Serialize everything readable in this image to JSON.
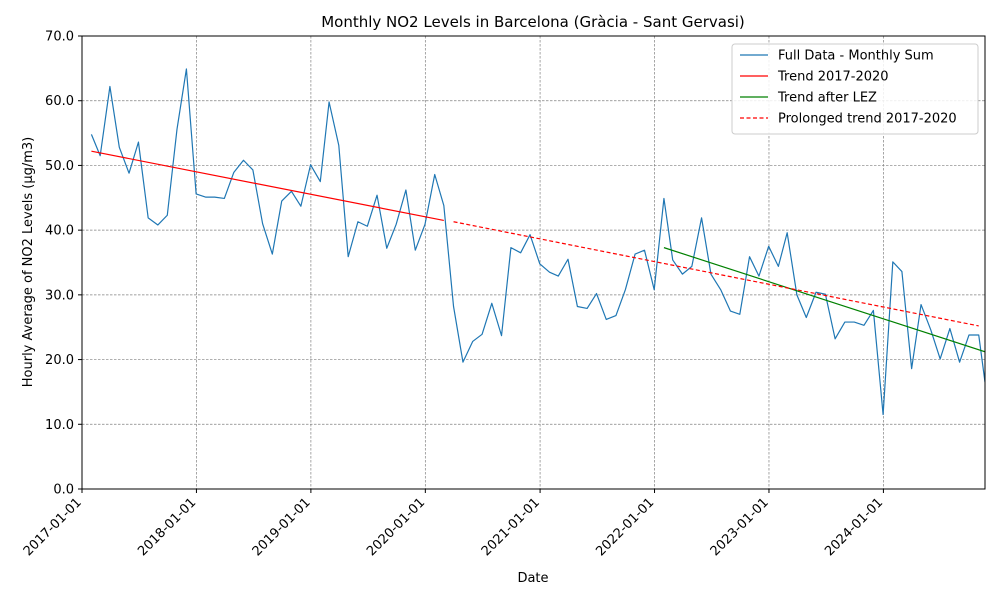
{
  "chart_data": {
    "type": "line",
    "title": "Monthly NO2 Levels in Barcelona (Gràcia - Sant Gervasi)",
    "xlabel": "Date",
    "ylabel": "Hourly Average of NO2 Levels (µg/m3)",
    "xlim": [
      "2017-01-01",
      "2024-11-20"
    ],
    "ylim": [
      0,
      70
    ],
    "x_ticks": [
      "2017-01-01",
      "2018-01-01",
      "2019-01-01",
      "2020-01-01",
      "2021-01-01",
      "2022-01-01",
      "2023-01-01",
      "2024-01-01"
    ],
    "y_ticks": [
      "0.0",
      "10.0",
      "20.0",
      "30.0",
      "40.0",
      "50.0",
      "60.0",
      "70.0"
    ],
    "grid": true,
    "legend_position": "top-right",
    "colors": {
      "full": "#1f77b4",
      "trend_2017_2020": "#ff0000",
      "trend_after_lez": "#008000",
      "prolonged": "#ff0000"
    },
    "series": [
      {
        "name": "Full Data - Monthly Sum",
        "style": "solid",
        "color": "#1f77b4",
        "points": [
          [
            "2017-01-31",
            54.8
          ],
          [
            "2017-02-28",
            51.5
          ],
          [
            "2017-03-31",
            62.2
          ],
          [
            "2017-04-30",
            52.8
          ],
          [
            "2017-05-31",
            48.8
          ],
          [
            "2017-06-30",
            53.6
          ],
          [
            "2017-07-31",
            41.9
          ],
          [
            "2017-08-31",
            40.8
          ],
          [
            "2017-09-30",
            42.3
          ],
          [
            "2017-10-31",
            55.6
          ],
          [
            "2017-11-30",
            64.9
          ],
          [
            "2017-12-31",
            45.6
          ],
          [
            "2018-01-31",
            45.1
          ],
          [
            "2018-02-28",
            45.1
          ],
          [
            "2018-03-31",
            44.9
          ],
          [
            "2018-04-30",
            48.9
          ],
          [
            "2018-05-31",
            50.8
          ],
          [
            "2018-06-30",
            49.3
          ],
          [
            "2018-07-31",
            41.0
          ],
          [
            "2018-08-31",
            36.3
          ],
          [
            "2018-09-30",
            44.5
          ],
          [
            "2018-10-31",
            46.0
          ],
          [
            "2018-11-30",
            43.7
          ],
          [
            "2018-12-31",
            50.1
          ],
          [
            "2019-01-31",
            47.5
          ],
          [
            "2019-02-28",
            59.8
          ],
          [
            "2019-03-31",
            53.1
          ],
          [
            "2019-04-30",
            35.9
          ],
          [
            "2019-05-31",
            41.3
          ],
          [
            "2019-06-30",
            40.6
          ],
          [
            "2019-07-31",
            45.4
          ],
          [
            "2019-08-31",
            37.2
          ],
          [
            "2019-09-30",
            40.9
          ],
          [
            "2019-10-31",
            46.2
          ],
          [
            "2019-11-30",
            36.9
          ],
          [
            "2019-12-31",
            40.9
          ],
          [
            "2020-01-31",
            48.6
          ],
          [
            "2020-02-29",
            43.8
          ],
          [
            "2020-03-31",
            28.2
          ],
          [
            "2020-04-30",
            19.6
          ],
          [
            "2020-05-31",
            22.8
          ],
          [
            "2020-06-30",
            23.9
          ],
          [
            "2020-07-31",
            28.7
          ],
          [
            "2020-08-31",
            23.7
          ],
          [
            "2020-09-30",
            37.3
          ],
          [
            "2020-10-31",
            36.5
          ],
          [
            "2020-11-30",
            39.3
          ],
          [
            "2020-12-31",
            34.8
          ],
          [
            "2021-01-31",
            33.5
          ],
          [
            "2021-02-28",
            32.9
          ],
          [
            "2021-03-31",
            35.5
          ],
          [
            "2021-04-30",
            28.2
          ],
          [
            "2021-05-31",
            27.9
          ],
          [
            "2021-06-30",
            30.2
          ],
          [
            "2021-07-31",
            26.2
          ],
          [
            "2021-08-31",
            26.8
          ],
          [
            "2021-09-30",
            30.8
          ],
          [
            "2021-10-31",
            36.3
          ],
          [
            "2021-11-30",
            36.9
          ],
          [
            "2021-12-31",
            30.8
          ],
          [
            "2022-01-31",
            44.9
          ],
          [
            "2022-02-28",
            35.4
          ],
          [
            "2022-03-31",
            33.2
          ],
          [
            "2022-04-30",
            34.4
          ],
          [
            "2022-05-31",
            41.9
          ],
          [
            "2022-06-30",
            33.2
          ],
          [
            "2022-07-31",
            30.8
          ],
          [
            "2022-08-31",
            27.5
          ],
          [
            "2022-09-30",
            27.0
          ],
          [
            "2022-10-31",
            35.9
          ],
          [
            "2022-11-30",
            32.9
          ],
          [
            "2022-12-31",
            37.5
          ],
          [
            "2023-01-31",
            34.4
          ],
          [
            "2023-02-28",
            39.6
          ],
          [
            "2023-03-31",
            30.0
          ],
          [
            "2023-04-30",
            26.5
          ],
          [
            "2023-05-31",
            30.4
          ],
          [
            "2023-06-30",
            30.1
          ],
          [
            "2023-07-31",
            23.2
          ],
          [
            "2023-08-31",
            25.8
          ],
          [
            "2023-09-30",
            25.8
          ],
          [
            "2023-10-31",
            25.3
          ],
          [
            "2023-11-30",
            27.6
          ],
          [
            "2023-12-31",
            11.5
          ],
          [
            "2024-01-31",
            35.1
          ],
          [
            "2024-02-29",
            33.6
          ],
          [
            "2024-03-31",
            18.6
          ],
          [
            "2024-04-30",
            28.5
          ],
          [
            "2024-05-31",
            24.6
          ],
          [
            "2024-06-30",
            20.1
          ],
          [
            "2024-07-31",
            24.8
          ],
          [
            "2024-08-31",
            19.6
          ],
          [
            "2024-09-30",
            23.8
          ],
          [
            "2024-10-31",
            23.8
          ],
          [
            "2024-11-20",
            16.5
          ]
        ]
      },
      {
        "name": "Trend 2017-2020",
        "style": "solid",
        "color": "#ff0000",
        "points": [
          [
            "2017-01-31",
            52.2
          ],
          [
            "2020-02-29",
            41.5
          ]
        ]
      },
      {
        "name": "Trend after LEZ",
        "style": "solid",
        "color": "#008000",
        "points": [
          [
            "2022-01-31",
            37.3
          ],
          [
            "2024-11-20",
            21.2
          ]
        ]
      },
      {
        "name": "Prolonged trend 2017-2020",
        "style": "dashed",
        "color": "#ff0000",
        "points": [
          [
            "2020-03-31",
            41.3
          ],
          [
            "2024-10-31",
            25.2
          ]
        ]
      }
    ]
  }
}
